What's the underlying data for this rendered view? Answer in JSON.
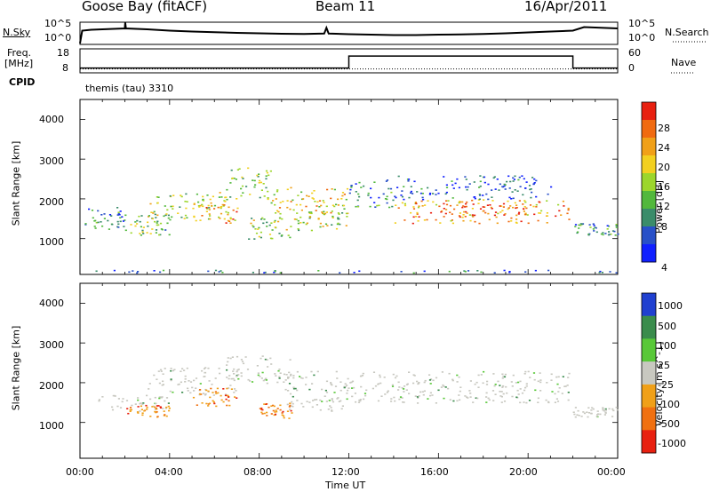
{
  "header": {
    "station": "Goose Bay (fitACF)",
    "beam": "Beam 11",
    "date": "16/Apr/2011"
  },
  "noise_panel": {
    "left_label": "N.Sky",
    "left_ticks": [
      "10^5",
      "10^0"
    ],
    "right_ticks": [
      "10^5",
      "10^0"
    ],
    "right_label": "N.Search",
    "series": [
      {
        "x": 0.0,
        "y": 0.05
      },
      {
        "x": 0.1,
        "y": 0.62
      },
      {
        "x": 0.5,
        "y": 0.66
      },
      {
        "x": 1.0,
        "y": 0.68
      },
      {
        "x": 1.5,
        "y": 0.7
      },
      {
        "x": 2.0,
        "y": 0.72
      },
      {
        "x": 2.02,
        "y": 0.98
      },
      {
        "x": 2.05,
        "y": 0.72
      },
      {
        "x": 3.0,
        "y": 0.68
      },
      {
        "x": 4.0,
        "y": 0.62
      },
      {
        "x": 5.0,
        "y": 0.58
      },
      {
        "x": 6.0,
        "y": 0.55
      },
      {
        "x": 7.0,
        "y": 0.52
      },
      {
        "x": 8.0,
        "y": 0.5
      },
      {
        "x": 9.0,
        "y": 0.48
      },
      {
        "x": 10.0,
        "y": 0.47
      },
      {
        "x": 10.9,
        "y": 0.49
      },
      {
        "x": 11.0,
        "y": 0.75
      },
      {
        "x": 11.1,
        "y": 0.49
      },
      {
        "x": 12.0,
        "y": 0.46
      },
      {
        "x": 13.0,
        "y": 0.44
      },
      {
        "x": 14.0,
        "y": 0.42
      },
      {
        "x": 15.0,
        "y": 0.42
      },
      {
        "x": 16.0,
        "y": 0.44
      },
      {
        "x": 17.0,
        "y": 0.45
      },
      {
        "x": 18.0,
        "y": 0.47
      },
      {
        "x": 19.0,
        "y": 0.5
      },
      {
        "x": 20.0,
        "y": 0.54
      },
      {
        "x": 21.0,
        "y": 0.58
      },
      {
        "x": 22.0,
        "y": 0.62
      },
      {
        "x": 22.5,
        "y": 0.78
      },
      {
        "x": 23.0,
        "y": 0.76
      },
      {
        "x": 24.0,
        "y": 0.72
      }
    ]
  },
  "freq_panel": {
    "left_label_1": "Freq.",
    "left_label_2": "[MHz]",
    "cpid_label": "CPID",
    "left_ticks": [
      "18",
      "8"
    ],
    "right_ticks": [
      "60",
      "0"
    ],
    "right_label": "Nave",
    "freq_series": [
      {
        "x": 0.0,
        "y": 10
      },
      {
        "x": 12.0,
        "y": 10
      },
      {
        "x": 12.0,
        "y": 15
      },
      {
        "x": 22.0,
        "y": 15
      },
      {
        "x": 22.0,
        "y": 10
      },
      {
        "x": 24.0,
        "y": 10
      }
    ],
    "nave_level": 10,
    "cpid_text": "themis (tau) 3310"
  },
  "chart_data": [
    {
      "type": "heatmap",
      "panel": "power",
      "ylabel": "Slant Range [km]",
      "ylim": [
        100,
        4500
      ],
      "yticks": [
        "4000",
        "3000",
        "2000",
        "1000"
      ],
      "xlim": [
        0,
        24
      ],
      "colorbar_label": "Power [dB]",
      "colorbar_ticks": [
        "28",
        "24",
        "20",
        "16",
        "12",
        "8",
        "4"
      ],
      "colorbar_colors": [
        "#1020ff",
        "#2850c8",
        "#3a8c6a",
        "#52b83c",
        "#9cd62c",
        "#f2d020",
        "#f0a018",
        "#f06a10",
        "#e82010"
      ],
      "echo_regions": [
        {
          "t0": 0.2,
          "t1": 2.0,
          "r0": 1200,
          "r1": 1800,
          "level": 2
        },
        {
          "t0": 2.0,
          "t1": 4.0,
          "r0": 1100,
          "r1": 1600,
          "level": 3
        },
        {
          "t0": 3.0,
          "t1": 6.5,
          "r0": 1500,
          "r1": 2200,
          "level": 4
        },
        {
          "t0": 5.0,
          "t1": 7.0,
          "r0": 1400,
          "r1": 1900,
          "level": 6
        },
        {
          "t0": 6.5,
          "t1": 8.5,
          "r0": 2000,
          "r1": 2800,
          "level": 3
        },
        {
          "t0": 7.5,
          "t1": 9.5,
          "r0": 1000,
          "r1": 1600,
          "level": 4
        },
        {
          "t0": 8.5,
          "t1": 12.0,
          "r0": 1500,
          "r1": 2300,
          "level": 5
        },
        {
          "t0": 9.5,
          "t1": 12.0,
          "r0": 1200,
          "r1": 1700,
          "level": 4
        },
        {
          "t0": 12.0,
          "t1": 14.0,
          "r0": 1800,
          "r1": 2500,
          "level": 2
        },
        {
          "t0": 14.0,
          "t1": 21.8,
          "r0": 1400,
          "r1": 2000,
          "level": 6
        },
        {
          "t0": 16.0,
          "t1": 20.0,
          "r0": 1600,
          "r1": 1900,
          "level": 8
        },
        {
          "t0": 14.0,
          "t1": 21.0,
          "r0": 2000,
          "r1": 2600,
          "level": 1
        },
        {
          "t0": 22.0,
          "t1": 24.0,
          "r0": 1100,
          "r1": 1400,
          "level": 2
        },
        {
          "t0": 0.5,
          "t1": 24.0,
          "r0": 150,
          "r1": 220,
          "level": 1
        }
      ]
    },
    {
      "type": "heatmap",
      "panel": "velocity",
      "ylabel": "Slant Range [km]",
      "ylim": [
        100,
        4500
      ],
      "yticks": [
        "4000",
        "3000",
        "2000",
        "1000"
      ],
      "xlim": [
        0,
        24
      ],
      "colorbar_label": "Velocity [m s^-1]",
      "colorbar_ticks": [
        "1000",
        "500",
        "100",
        "25",
        "-25",
        "-100",
        "-500",
        "-1000"
      ],
      "colorbar_colors": [
        "#2040d0",
        "#3a8c4c",
        "#58c838",
        "#c8c8c0",
        "#f0a018",
        "#f07010",
        "#e82010"
      ],
      "echo_regions": [
        {
          "t0": 0.5,
          "t1": 4.0,
          "r0": 1300,
          "r1": 1700,
          "cls": "gray"
        },
        {
          "t0": 2.0,
          "t1": 4.0,
          "r0": 1150,
          "r1": 1450,
          "cls": "orange"
        },
        {
          "t0": 3.0,
          "t1": 7.0,
          "r0": 1700,
          "r1": 2400,
          "cls": "gray"
        },
        {
          "t0": 5.0,
          "t1": 7.0,
          "r0": 1400,
          "r1": 1900,
          "cls": "orange"
        },
        {
          "t0": 6.5,
          "t1": 9.5,
          "r0": 2000,
          "r1": 2700,
          "cls": "gray"
        },
        {
          "t0": 8.0,
          "t1": 9.5,
          "r0": 1100,
          "r1": 1500,
          "cls": "orange"
        },
        {
          "t0": 9.0,
          "t1": 12.0,
          "r0": 1300,
          "r1": 2300,
          "cls": "gray"
        },
        {
          "t0": 12.0,
          "t1": 21.8,
          "r0": 1500,
          "r1": 2300,
          "cls": "gray"
        },
        {
          "t0": 22.0,
          "t1": 24.0,
          "r0": 1150,
          "r1": 1400,
          "cls": "gray"
        }
      ]
    }
  ],
  "x_axis": {
    "ticks": [
      "00:00",
      "04:00",
      "08:00",
      "12:00",
      "16:00",
      "20:00",
      "00:00"
    ],
    "label": "Time UT"
  }
}
